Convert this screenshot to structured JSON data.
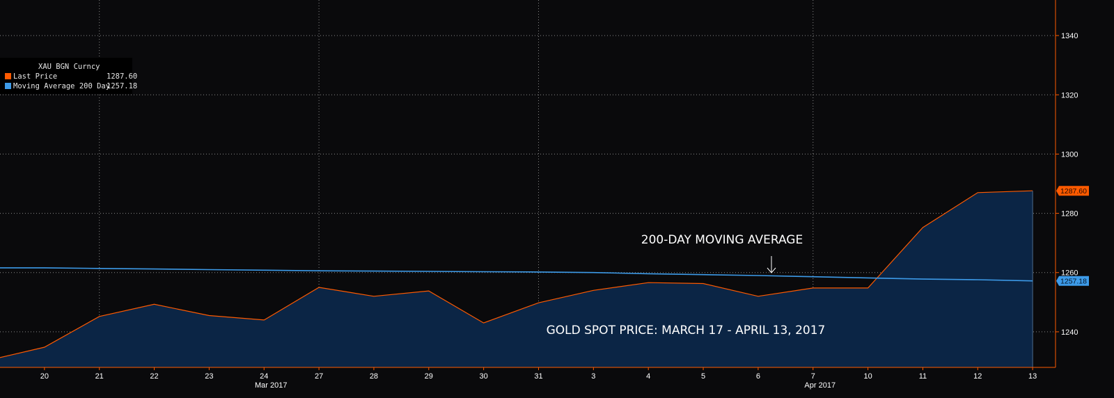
{
  "legend": {
    "title": "XAU BGN Curncy",
    "items": [
      {
        "label": "Last Price",
        "value": "1287.60",
        "color": "#ff5a00"
      },
      {
        "label": "Moving Average 200 Day",
        "value": "1257.18",
        "color": "#3d9be9"
      }
    ]
  },
  "annotations": {
    "moving_average": "200-DAY MOVING AVERAGE",
    "arrow_glyph": "↓",
    "price_caption": "GOLD SPOT PRICE: MARCH 17 - APRIL 13, 2017"
  },
  "price_tags": {
    "last_price": "1287.60",
    "moving_average": "1257.18"
  },
  "colors": {
    "background": "#0a0a0c",
    "price_line": "#ff5a00",
    "area_fill": "#0b2545",
    "moving_average_line": "#3d9be9",
    "grid": "#8a8a8a",
    "axis_text": "#ffffff"
  },
  "chart_data": {
    "type": "area",
    "title": "",
    "xlabel": "",
    "ylabel": "",
    "x_tick_labels": [
      "20",
      "21",
      "22",
      "23",
      "24",
      "27",
      "28",
      "29",
      "30",
      "31",
      "3",
      "4",
      "5",
      "6",
      "7",
      "10",
      "11",
      "12",
      "13"
    ],
    "month_labels": [
      {
        "label": "Mar 2017",
        "at_tick": "24"
      },
      {
        "label": "Apr 2017",
        "at_tick": "7"
      }
    ],
    "dates": [
      "2017-03-17",
      "2017-03-20",
      "2017-03-21",
      "2017-03-22",
      "2017-03-23",
      "2017-03-24",
      "2017-03-27",
      "2017-03-28",
      "2017-03-29",
      "2017-03-30",
      "2017-03-31",
      "2017-04-03",
      "2017-04-04",
      "2017-04-05",
      "2017-04-06",
      "2017-04-07",
      "2017-04-10",
      "2017-04-11",
      "2017-04-12",
      "2017-04-13"
    ],
    "ylim": [
      1228,
      1352
    ],
    "y_ticks": [
      1240,
      1260,
      1280,
      1300,
      1320,
      1340
    ],
    "grid": true,
    "legend_position": "top-left",
    "series": [
      {
        "name": "Last Price",
        "style": "area",
        "values": [
          1230.5,
          1234.8,
          1245.2,
          1249.3,
          1245.5,
          1244.0,
          1255.0,
          1252.0,
          1253.8,
          1243.0,
          1249.8,
          1254.0,
          1256.6,
          1256.3,
          1252.0,
          1254.8,
          1254.8,
          1275.2,
          1287.0,
          1287.6
        ]
      },
      {
        "name": "Moving Average 200 Day",
        "style": "line",
        "values": [
          1261.6,
          1261.6,
          1261.4,
          1261.2,
          1261.0,
          1260.8,
          1260.6,
          1260.5,
          1260.4,
          1260.3,
          1260.2,
          1260.0,
          1259.6,
          1259.3,
          1259.0,
          1258.6,
          1258.2,
          1257.8,
          1257.6,
          1257.18
        ]
      }
    ]
  }
}
